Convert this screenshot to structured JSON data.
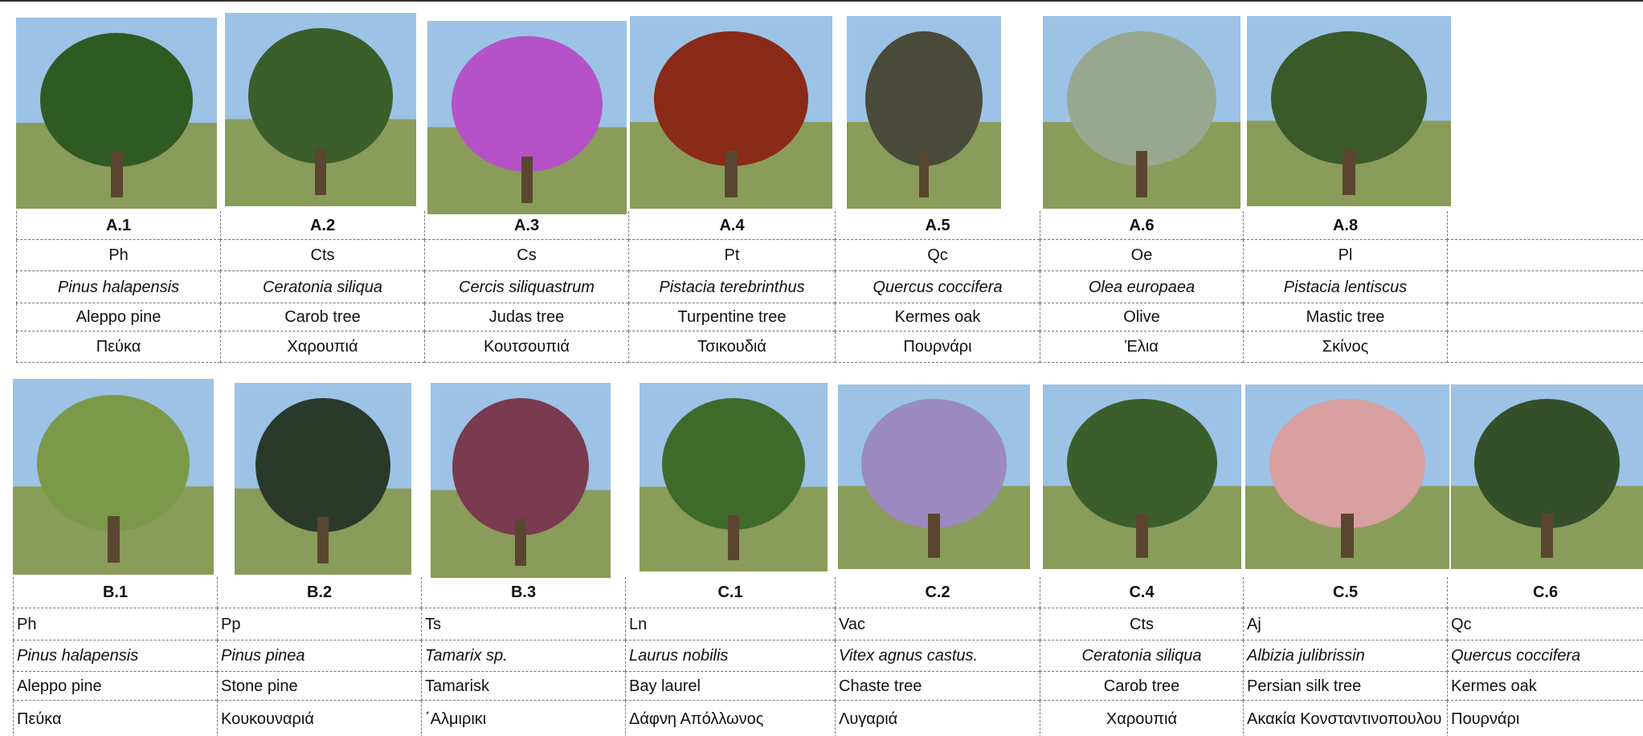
{
  "top": [
    {
      "code": "A.1",
      "abbr": "Ph",
      "latin": "Pinus halapensis",
      "english": "Aleppo pine",
      "greek": "Πεύκα"
    },
    {
      "code": "A.2",
      "abbr": "Cts",
      "latin": "Ceratonia siliqua",
      "english": "Carob tree",
      "greek": "Χαρουπιά"
    },
    {
      "code": "A.3",
      "abbr": "Cs",
      "latin": "Cercis siliquastrum",
      "english": "Judas tree",
      "greek": "Κουτσουπιά"
    },
    {
      "code": "A.4",
      "abbr": "Pt",
      "latin": "Pistacia terebrinthus",
      "english": "Turpentine tree",
      "greek": "Τσικουδιά"
    },
    {
      "code": "A.5",
      "abbr": "Qc",
      "latin": "Quercus coccifera",
      "english": "Kermes oak",
      "greek": "Πουρνάρι"
    },
    {
      "code": "A.6",
      "abbr": "Oe",
      "latin": "Olea europaea",
      "english": "Olive",
      "greek": "Έλια"
    },
    {
      "code": "A.8",
      "abbr": "Pl",
      "latin": "Pistacia lentiscus",
      "english": "Mastic tree",
      "greek": "Σκίνος"
    }
  ],
  "bottom": [
    {
      "code": "B.1",
      "abbr": "Ph",
      "latin": "Pinus halapensis",
      "english": "Aleppo pine",
      "greek": "Πεύκα"
    },
    {
      "code": "B.2",
      "abbr": "Pp",
      "latin": "Pinus pinea",
      "english": "Stone pine",
      "greek": "Κουκουναριά"
    },
    {
      "code": "B.3",
      "abbr": "Ts",
      "latin": "Tamarix sp.",
      "english": "Tamarisk",
      "greek": "΄Αλμιρικι"
    },
    {
      "code": "C.1",
      "abbr": "Ln",
      "latin": "Laurus nobilis",
      "english": "Bay laurel",
      "greek": "Δάφνη Απόλλωνος"
    },
    {
      "code": "C.2",
      "abbr": "Vac",
      "latin": "Vitex agnus castus.",
      "english": "Chaste tree",
      "greek": "Λυγαριά"
    },
    {
      "code": "C.4",
      "abbr": "Cts",
      "latin": "Ceratonia siliqua",
      "english": "Carob tree",
      "greek": "Χαρουπιά"
    },
    {
      "code": "C.5",
      "abbr": "Aj",
      "latin": "Albizia julibrissin",
      "english": "Persian silk tree",
      "greek": "Ακακία Κονσταντινοπουλου"
    },
    {
      "code": "C.6",
      "abbr": "Qc",
      "latin": "Quercus coccifera",
      "english": "Kermes oak",
      "greek": "Πουρνάρι"
    }
  ]
}
